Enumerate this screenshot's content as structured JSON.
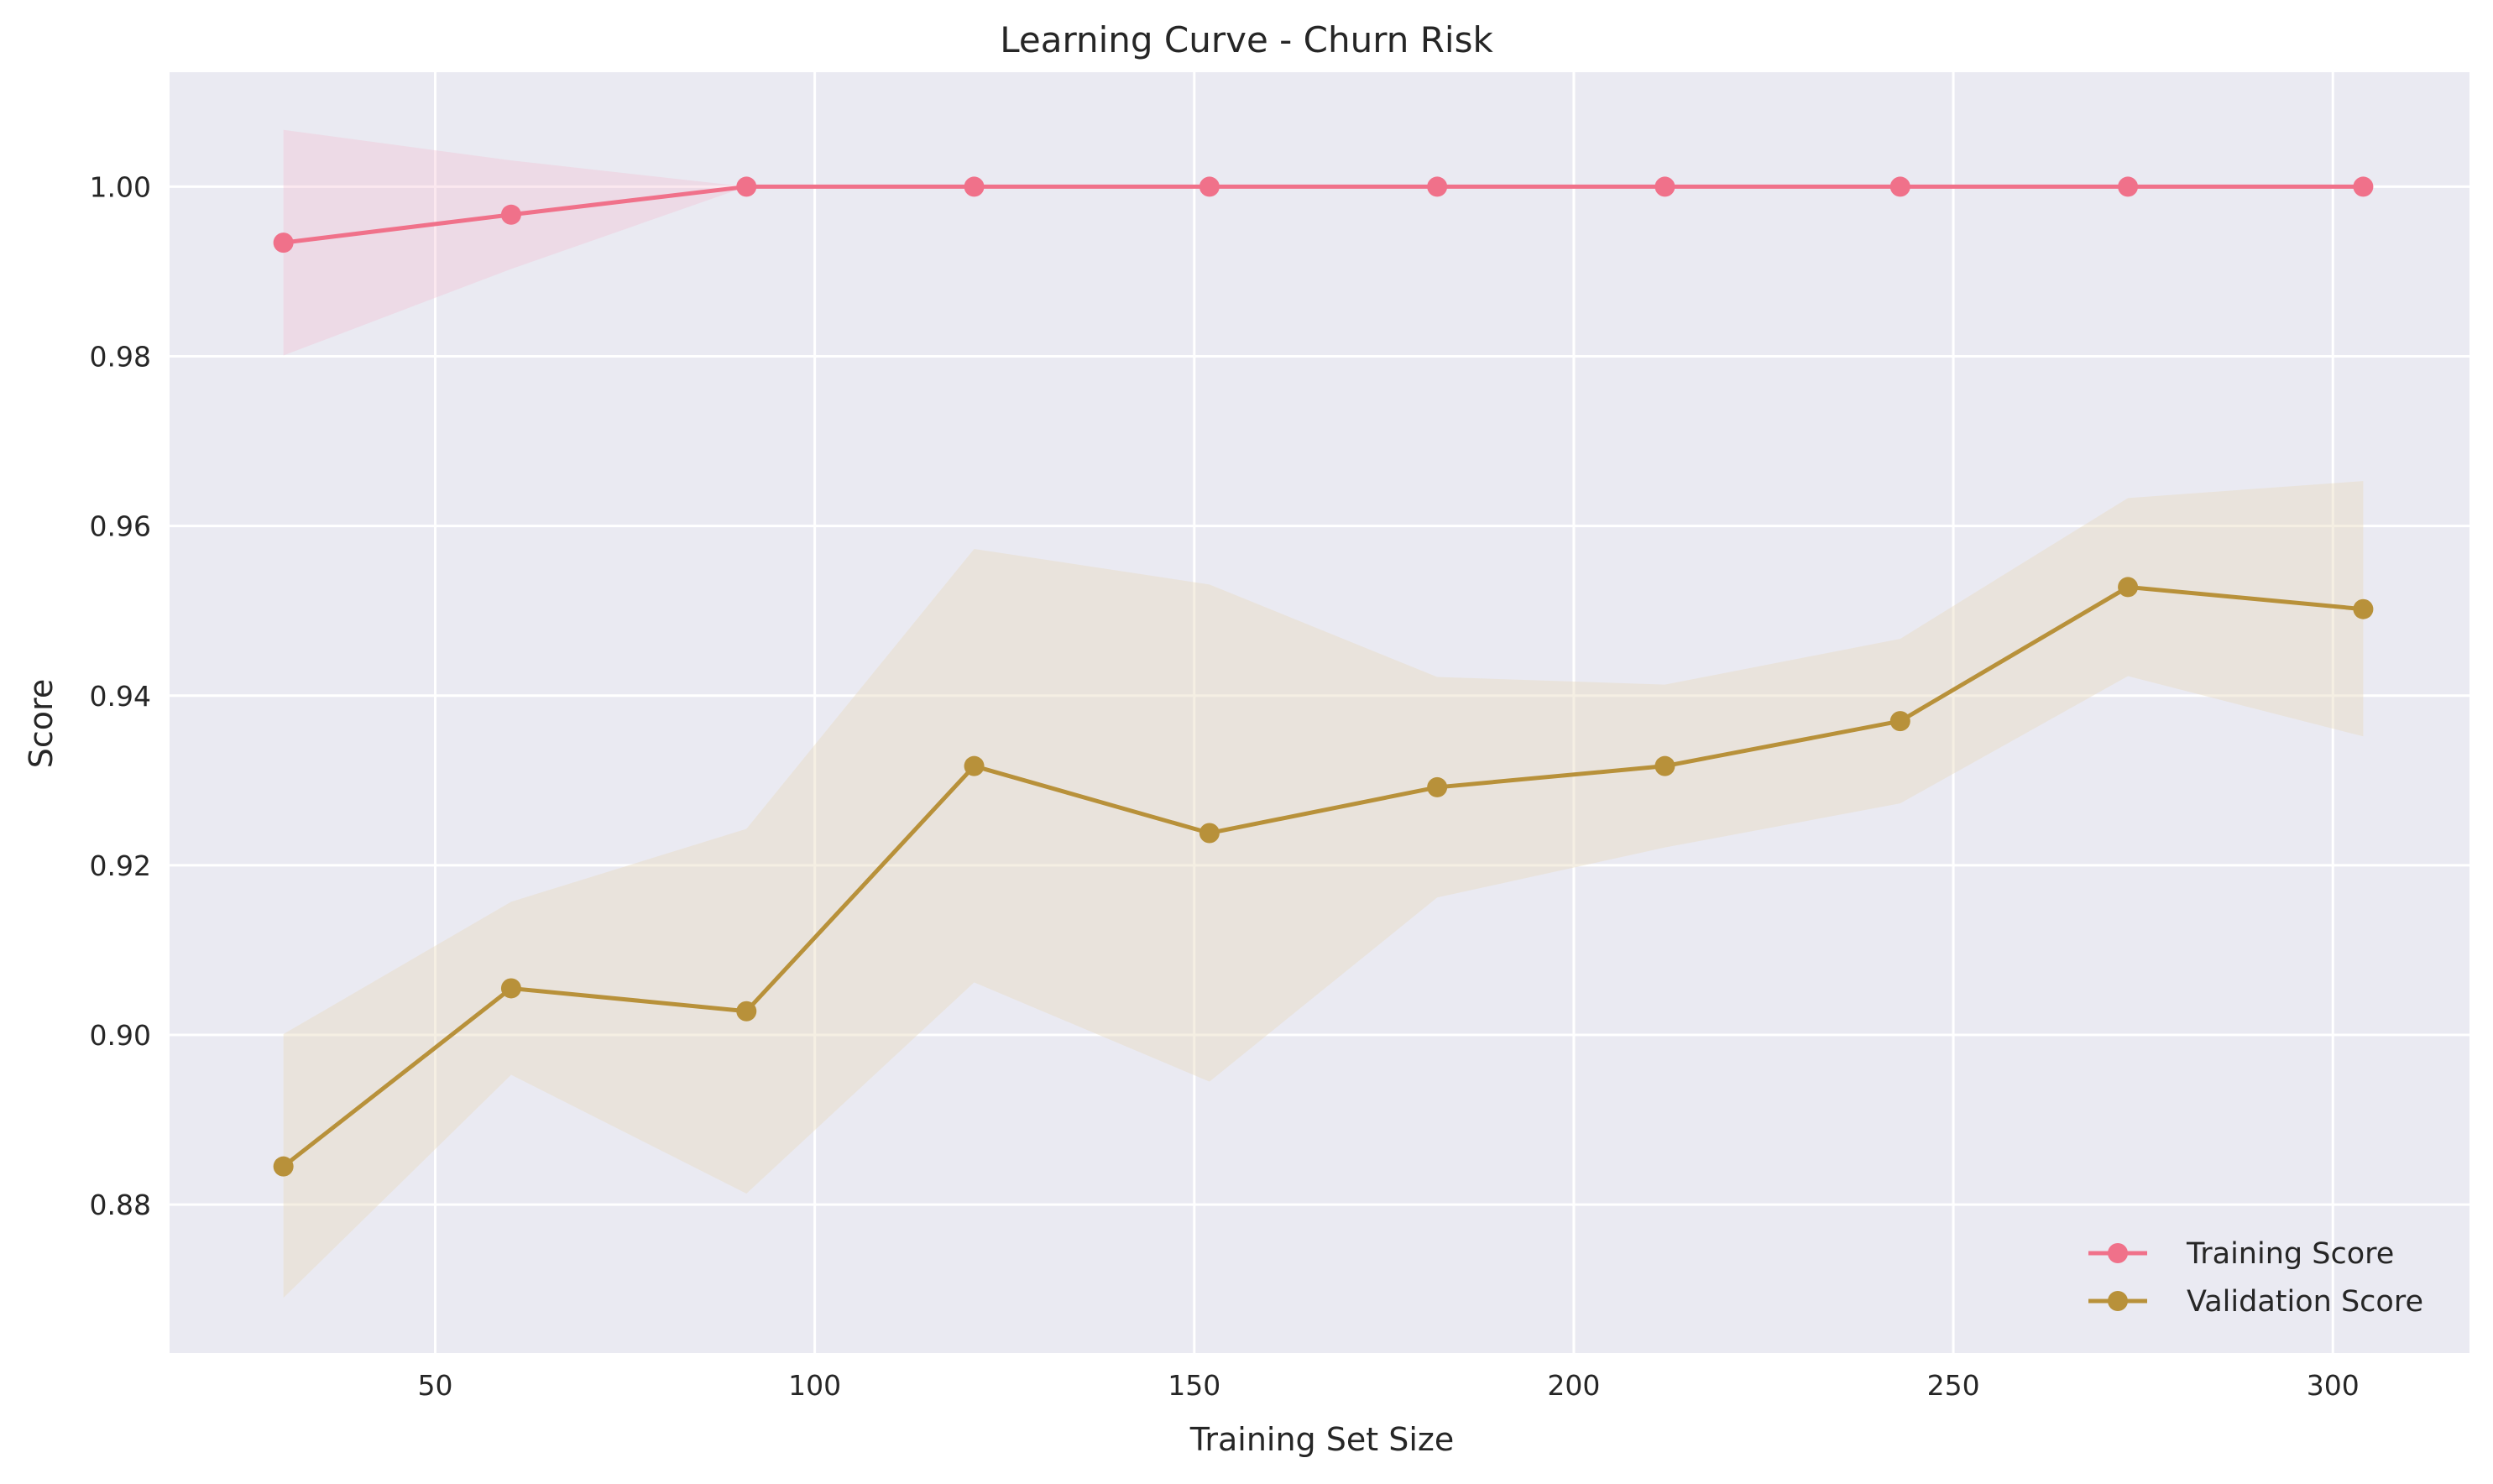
{
  "chart_data": {
    "type": "line",
    "title": "Learning Curve - Churn Risk",
    "xlabel": "Training Set Size",
    "ylabel": "Score",
    "xlim": [
      15,
      318
    ],
    "ylim": [
      0.8625,
      1.0135
    ],
    "xticks": [
      50,
      100,
      150,
      200,
      250,
      300
    ],
    "yticks": [
      0.88,
      0.9,
      0.92,
      0.94,
      0.96,
      0.98,
      1.0
    ],
    "ytick_labels": [
      "0.88",
      "0.90",
      "0.92",
      "0.94",
      "0.96",
      "0.98",
      "1.00"
    ],
    "grid": true,
    "legend_position": "lower-right",
    "x": [
      30,
      60,
      91,
      121,
      152,
      182,
      212,
      243,
      273,
      304
    ],
    "series": [
      {
        "name": "Training Score",
        "color": "#f0718a",
        "band_color": "#f4bcd0",
        "values": [
          0.9934,
          0.9967,
          1.0,
          1.0,
          1.0,
          1.0,
          1.0,
          1.0,
          1.0,
          1.0
        ],
        "band_lower": [
          0.9801,
          0.9903,
          1.0,
          1.0,
          1.0,
          1.0,
          1.0,
          1.0,
          1.0,
          1.0
        ],
        "band_upper": [
          1.0067,
          1.0031,
          1.0,
          1.0,
          1.0,
          1.0,
          1.0,
          1.0,
          1.0,
          1.0
        ]
      },
      {
        "name": "Validation Score",
        "color": "#b8913a",
        "band_color": "#e8dcc0",
        "values": [
          0.8845,
          0.9055,
          0.9028,
          0.9317,
          0.9238,
          0.9292,
          0.9317,
          0.937,
          0.9528,
          0.9502
        ],
        "band_lower": [
          0.869,
          0.8953,
          0.8813,
          0.9062,
          0.8945,
          0.9162,
          0.9221,
          0.9273,
          0.9423,
          0.9352
        ],
        "band_upper": [
          0.9001,
          0.9157,
          0.9243,
          0.9573,
          0.9531,
          0.9422,
          0.9413,
          0.9467,
          0.9633,
          0.9653
        ]
      }
    ]
  }
}
